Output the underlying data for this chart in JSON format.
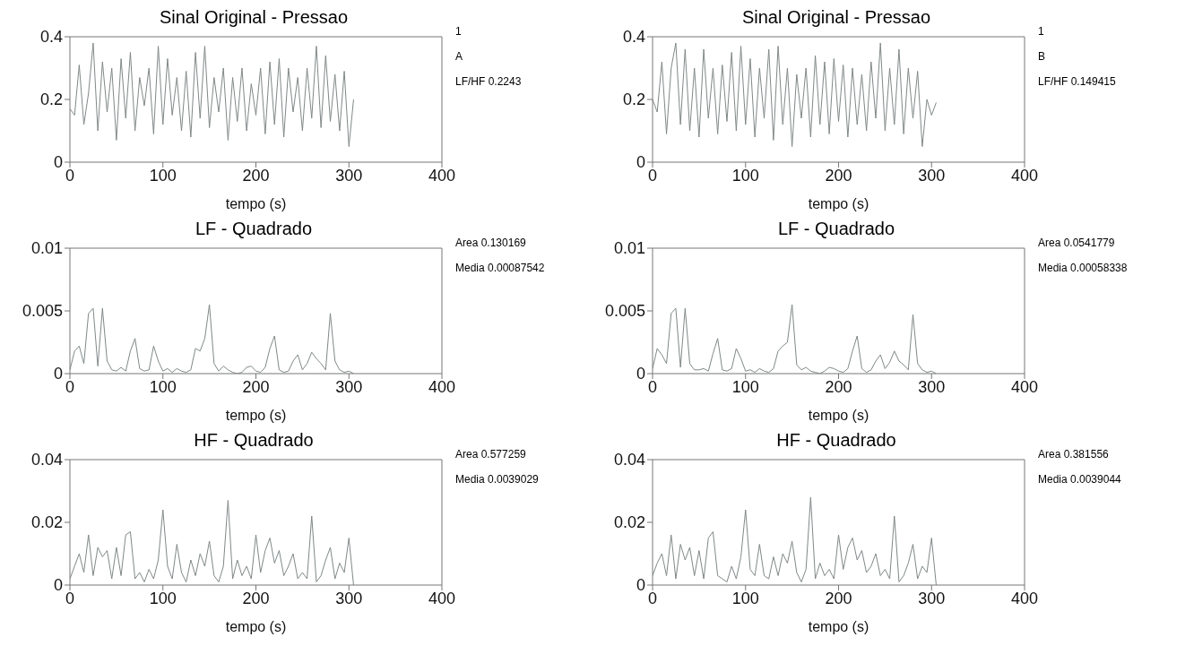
{
  "chart_data": [
    {
      "type": "line",
      "title": "Sinal Original - Pressao",
      "xlabel": "tempo (s)",
      "annotations": [
        "1",
        "A",
        "LF/HF 0.2243"
      ],
      "xlim": [
        0,
        400
      ],
      "xticks": [
        0,
        100,
        200,
        300,
        400
      ],
      "ylim": [
        0,
        0.4
      ],
      "yticks": [
        0,
        0.2,
        0.4
      ],
      "x": [
        0,
        5,
        10,
        15,
        20,
        25,
        30,
        35,
        40,
        45,
        50,
        55,
        60,
        65,
        70,
        75,
        80,
        85,
        90,
        95,
        100,
        105,
        110,
        115,
        120,
        125,
        130,
        135,
        140,
        145,
        150,
        155,
        160,
        165,
        170,
        175,
        180,
        185,
        190,
        195,
        200,
        205,
        210,
        215,
        220,
        225,
        230,
        235,
        240,
        245,
        250,
        255,
        260,
        265,
        270,
        275,
        280,
        285,
        290,
        295,
        300,
        305
      ],
      "series": [
        {
          "color": "#808888",
          "values": [
            0.17,
            0.15,
            0.31,
            0.12,
            0.22,
            0.38,
            0.1,
            0.32,
            0.16,
            0.3,
            0.07,
            0.33,
            0.14,
            0.35,
            0.1,
            0.27,
            0.18,
            0.3,
            0.09,
            0.37,
            0.12,
            0.33,
            0.15,
            0.27,
            0.1,
            0.29,
            0.08,
            0.35,
            0.14,
            0.37,
            0.11,
            0.27,
            0.16,
            0.3,
            0.07,
            0.27,
            0.13,
            0.3,
            0.1,
            0.25,
            0.15,
            0.3,
            0.09,
            0.32,
            0.12,
            0.33,
            0.08,
            0.3,
            0.16,
            0.27,
            0.1,
            0.3,
            0.14,
            0.37,
            0.11,
            0.34,
            0.13,
            0.28,
            0.1,
            0.29,
            0.05,
            0.2
          ]
        }
      ]
    },
    {
      "type": "line",
      "title": "Sinal Original - Pressao",
      "xlabel": "tempo (s)",
      "annotations": [
        "1",
        "B",
        "LF/HF 0.149415"
      ],
      "xlim": [
        0,
        400
      ],
      "xticks": [
        0,
        100,
        200,
        300,
        400
      ],
      "ylim": [
        0,
        0.4
      ],
      "yticks": [
        0,
        0.2,
        0.4
      ],
      "x": [
        0,
        5,
        10,
        15,
        20,
        25,
        30,
        35,
        40,
        45,
        50,
        55,
        60,
        65,
        70,
        75,
        80,
        85,
        90,
        95,
        100,
        105,
        110,
        115,
        120,
        125,
        130,
        135,
        140,
        145,
        150,
        155,
        160,
        165,
        170,
        175,
        180,
        185,
        190,
        195,
        200,
        205,
        210,
        215,
        220,
        225,
        230,
        235,
        240,
        245,
        250,
        255,
        260,
        265,
        270,
        275,
        280,
        285,
        290,
        295,
        300,
        305
      ],
      "series": [
        {
          "color": "#808888",
          "values": [
            0.2,
            0.16,
            0.32,
            0.09,
            0.3,
            0.38,
            0.12,
            0.36,
            0.1,
            0.3,
            0.08,
            0.36,
            0.14,
            0.3,
            0.09,
            0.31,
            0.13,
            0.35,
            0.1,
            0.37,
            0.12,
            0.33,
            0.08,
            0.3,
            0.14,
            0.36,
            0.07,
            0.37,
            0.12,
            0.3,
            0.05,
            0.28,
            0.14,
            0.3,
            0.08,
            0.34,
            0.12,
            0.32,
            0.09,
            0.33,
            0.13,
            0.31,
            0.08,
            0.3,
            0.12,
            0.28,
            0.1,
            0.32,
            0.14,
            0.38,
            0.1,
            0.3,
            0.12,
            0.36,
            0.09,
            0.3,
            0.14,
            0.29,
            0.05,
            0.2,
            0.15,
            0.19
          ]
        }
      ]
    },
    {
      "type": "line",
      "title": "LF - Quadrado",
      "xlabel": "tempo (s)",
      "annotations": [
        "Area 0.130169",
        "Media 0.00087542"
      ],
      "xlim": [
        0,
        400
      ],
      "xticks": [
        0,
        100,
        200,
        300,
        400
      ],
      "ylim": [
        0,
        0.01
      ],
      "yticks": [
        0,
        0.005,
        0.01
      ],
      "x": [
        0,
        5,
        10,
        15,
        20,
        25,
        30,
        35,
        40,
        45,
        50,
        55,
        60,
        65,
        70,
        75,
        80,
        85,
        90,
        95,
        100,
        105,
        110,
        115,
        120,
        125,
        130,
        135,
        140,
        145,
        150,
        155,
        160,
        165,
        170,
        175,
        180,
        185,
        190,
        195,
        200,
        205,
        210,
        215,
        220,
        225,
        230,
        235,
        240,
        245,
        250,
        255,
        260,
        265,
        270,
        275,
        280,
        285,
        290,
        295,
        300,
        305
      ],
      "series": [
        {
          "color": "#808888",
          "values": [
            0.0003,
            0.0018,
            0.0022,
            0.0008,
            0.0048,
            0.0052,
            0.0006,
            0.0052,
            0.001,
            0.0003,
            0.0002,
            0.0005,
            0.0002,
            0.0018,
            0.0028,
            0.0004,
            0.0002,
            0.0003,
            0.0022,
            0.001,
            0.0002,
            0.0004,
            0.0001,
            0.0004,
            0.0002,
            0.0001,
            0.0003,
            0.002,
            0.0018,
            0.0028,
            0.0055,
            0.0008,
            0.0002,
            0.0006,
            0.0003,
            0.0001,
            0.0,
            0.0001,
            0.0005,
            0.0006,
            0.0002,
            0.0001,
            0.0005,
            0.002,
            0.003,
            0.0003,
            0.0001,
            0.0002,
            0.001,
            0.0015,
            0.0003,
            0.0008,
            0.0017,
            0.0012,
            0.0008,
            0.0003,
            0.0048,
            0.001,
            0.0003,
            0.0001,
            0.0002,
            0.0
          ]
        }
      ]
    },
    {
      "type": "line",
      "title": "LF - Quadrado",
      "xlabel": "tempo (s)",
      "annotations": [
        "Area 0.0541779",
        "Media 0.00058338"
      ],
      "xlim": [
        0,
        400
      ],
      "xticks": [
        0,
        100,
        200,
        300,
        400
      ],
      "ylim": [
        0,
        0.01
      ],
      "yticks": [
        0,
        0.005,
        0.01
      ],
      "x": [
        0,
        5,
        10,
        15,
        20,
        25,
        30,
        35,
        40,
        45,
        50,
        55,
        60,
        65,
        70,
        75,
        80,
        85,
        90,
        95,
        100,
        105,
        110,
        115,
        120,
        125,
        130,
        135,
        140,
        145,
        150,
        155,
        160,
        165,
        170,
        175,
        180,
        185,
        190,
        195,
        200,
        205,
        210,
        215,
        220,
        225,
        230,
        235,
        240,
        245,
        250,
        255,
        260,
        265,
        270,
        275,
        280,
        285,
        290,
        295,
        300,
        305
      ],
      "series": [
        {
          "color": "#808888",
          "values": [
            0.0004,
            0.002,
            0.0015,
            0.0008,
            0.0048,
            0.0052,
            0.0005,
            0.0052,
            0.0008,
            0.0003,
            0.0003,
            0.0004,
            0.0002,
            0.0016,
            0.0028,
            0.0003,
            0.0002,
            0.0004,
            0.002,
            0.0012,
            0.0002,
            0.0003,
            0.0001,
            0.0004,
            0.0002,
            0.0001,
            0.0004,
            0.0018,
            0.0022,
            0.0025,
            0.0055,
            0.0007,
            0.0003,
            0.0005,
            0.0002,
            0.0001,
            0.0,
            0.0002,
            0.0005,
            0.0004,
            0.0002,
            0.0001,
            0.0004,
            0.0018,
            0.003,
            0.0004,
            0.0001,
            0.0003,
            0.001,
            0.0015,
            0.0004,
            0.0009,
            0.0018,
            0.001,
            0.0007,
            0.0003,
            0.0047,
            0.0008,
            0.0003,
            0.0001,
            0.0002,
            0.0
          ]
        }
      ]
    },
    {
      "type": "line",
      "title": "HF - Quadrado",
      "xlabel": "tempo (s)",
      "annotations": [
        "Area 0.577259",
        "Media 0.0039029"
      ],
      "xlim": [
        0,
        400
      ],
      "xticks": [
        0,
        100,
        200,
        300,
        400
      ],
      "ylim": [
        0,
        0.04
      ],
      "yticks": [
        0,
        0.02,
        0.04
      ],
      "x": [
        0,
        5,
        10,
        15,
        20,
        25,
        30,
        35,
        40,
        45,
        50,
        55,
        60,
        65,
        70,
        75,
        80,
        85,
        90,
        95,
        100,
        105,
        110,
        115,
        120,
        125,
        130,
        135,
        140,
        145,
        150,
        155,
        160,
        165,
        170,
        175,
        180,
        185,
        190,
        195,
        200,
        205,
        210,
        215,
        220,
        225,
        230,
        235,
        240,
        245,
        250,
        255,
        260,
        265,
        270,
        275,
        280,
        285,
        290,
        295,
        300,
        305
      ],
      "series": [
        {
          "color": "#808888",
          "values": [
            0.002,
            0.006,
            0.01,
            0.004,
            0.016,
            0.003,
            0.012,
            0.009,
            0.011,
            0.002,
            0.012,
            0.003,
            0.016,
            0.017,
            0.002,
            0.004,
            0.001,
            0.005,
            0.002,
            0.008,
            0.024,
            0.006,
            0.002,
            0.013,
            0.004,
            0.001,
            0.008,
            0.003,
            0.01,
            0.006,
            0.014,
            0.003,
            0.001,
            0.006,
            0.027,
            0.002,
            0.008,
            0.003,
            0.006,
            0.002,
            0.016,
            0.004,
            0.011,
            0.015,
            0.007,
            0.011,
            0.003,
            0.006,
            0.01,
            0.002,
            0.004,
            0.002,
            0.022,
            0.001,
            0.003,
            0.008,
            0.012,
            0.002,
            0.007,
            0.004,
            0.015,
            0.0
          ]
        }
      ]
    },
    {
      "type": "line",
      "title": "HF - Quadrado",
      "xlabel": "tempo (s)",
      "annotations": [
        "Area 0.381556",
        "Media 0.0039044"
      ],
      "xlim": [
        0,
        400
      ],
      "xticks": [
        0,
        100,
        200,
        300,
        400
      ],
      "ylim": [
        0,
        0.04
      ],
      "yticks": [
        0,
        0.02,
        0.04
      ],
      "x": [
        0,
        5,
        10,
        15,
        20,
        25,
        30,
        35,
        40,
        45,
        50,
        55,
        60,
        65,
        70,
        75,
        80,
        85,
        90,
        95,
        100,
        105,
        110,
        115,
        120,
        125,
        130,
        135,
        140,
        145,
        150,
        155,
        160,
        165,
        170,
        175,
        180,
        185,
        190,
        195,
        200,
        205,
        210,
        215,
        220,
        225,
        230,
        235,
        240,
        245,
        250,
        255,
        260,
        265,
        270,
        275,
        280,
        285,
        290,
        295,
        300,
        305
      ],
      "series": [
        {
          "color": "#808888",
          "values": [
            0.003,
            0.007,
            0.01,
            0.003,
            0.016,
            0.002,
            0.013,
            0.008,
            0.012,
            0.003,
            0.011,
            0.002,
            0.015,
            0.017,
            0.003,
            0.002,
            0.001,
            0.006,
            0.002,
            0.009,
            0.024,
            0.005,
            0.003,
            0.013,
            0.003,
            0.002,
            0.009,
            0.003,
            0.01,
            0.007,
            0.014,
            0.004,
            0.001,
            0.005,
            0.028,
            0.002,
            0.007,
            0.003,
            0.005,
            0.002,
            0.016,
            0.005,
            0.012,
            0.015,
            0.008,
            0.011,
            0.004,
            0.006,
            0.01,
            0.003,
            0.005,
            0.002,
            0.022,
            0.001,
            0.003,
            0.007,
            0.013,
            0.002,
            0.006,
            0.004,
            0.015,
            0.0
          ]
        }
      ]
    }
  ]
}
